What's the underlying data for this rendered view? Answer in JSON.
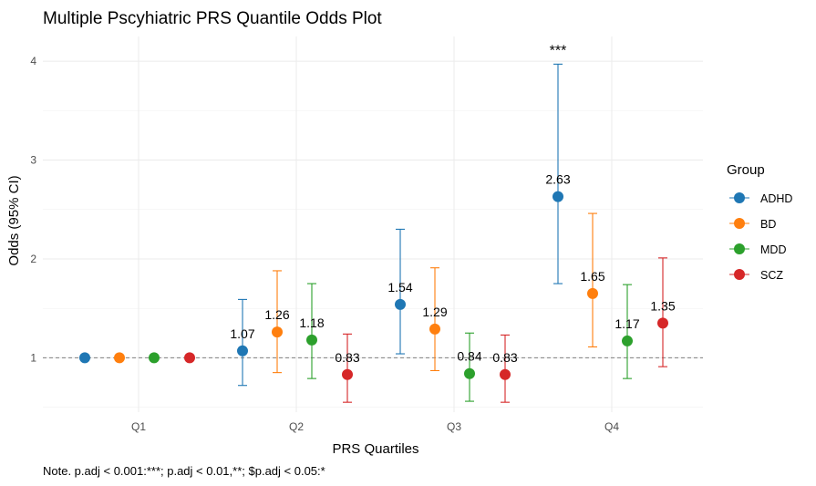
{
  "chart_data": {
    "type": "scatter",
    "title": "Multiple Pscyhiatric PRS Quantile Odds Plot",
    "xlabel": "PRS Quartiles",
    "ylabel": "Odds (95% CI)",
    "categories": [
      "Q1",
      "Q2",
      "Q3",
      "Q4"
    ],
    "yticks": [
      1,
      2,
      3,
      4
    ],
    "ylim": [
      0.45,
      4.25
    ],
    "reference_line": 1,
    "grid": true,
    "legend": {
      "title": "Group",
      "position": "right"
    },
    "note": "Note. p.adj < 0.001:***; p.adj < 0.01,**; $p.adj < 0.05:*",
    "series": [
      {
        "name": "ADHD",
        "color": "#1F77B4",
        "points": [
          {
            "x": "Q1",
            "y": 1.0,
            "lo": null,
            "hi": null,
            "label": "",
            "sig": ""
          },
          {
            "x": "Q2",
            "y": 1.07,
            "lo": 0.72,
            "hi": 1.59,
            "label": "1.07",
            "sig": ""
          },
          {
            "x": "Q3",
            "y": 1.54,
            "lo": 1.04,
            "hi": 2.3,
            "label": "1.54",
            "sig": ""
          },
          {
            "x": "Q4",
            "y": 2.63,
            "lo": 1.75,
            "hi": 3.97,
            "label": "2.63",
            "sig": "***"
          }
        ]
      },
      {
        "name": "BD",
        "color": "#FF7F0E",
        "points": [
          {
            "x": "Q1",
            "y": 1.0,
            "lo": null,
            "hi": null,
            "label": "",
            "sig": ""
          },
          {
            "x": "Q2",
            "y": 1.26,
            "lo": 0.85,
            "hi": 1.88,
            "label": "1.26",
            "sig": ""
          },
          {
            "x": "Q3",
            "y": 1.29,
            "lo": 0.87,
            "hi": 1.91,
            "label": "1.29",
            "sig": ""
          },
          {
            "x": "Q4",
            "y": 1.65,
            "lo": 1.11,
            "hi": 2.46,
            "label": "1.65",
            "sig": ""
          }
        ]
      },
      {
        "name": "MDD",
        "color": "#2CA02C",
        "points": [
          {
            "x": "Q1",
            "y": 1.0,
            "lo": null,
            "hi": null,
            "label": "",
            "sig": ""
          },
          {
            "x": "Q2",
            "y": 1.18,
            "lo": 0.79,
            "hi": 1.75,
            "label": "1.18",
            "sig": ""
          },
          {
            "x": "Q3",
            "y": 0.84,
            "lo": 0.56,
            "hi": 1.25,
            "label": "0.84",
            "sig": ""
          },
          {
            "x": "Q4",
            "y": 1.17,
            "lo": 0.79,
            "hi": 1.74,
            "label": "1.17",
            "sig": ""
          }
        ]
      },
      {
        "name": "SCZ",
        "color": "#D62728",
        "points": [
          {
            "x": "Q1",
            "y": 1.0,
            "lo": null,
            "hi": null,
            "label": "",
            "sig": ""
          },
          {
            "x": "Q2",
            "y": 0.83,
            "lo": 0.55,
            "hi": 1.24,
            "label": "0.83",
            "sig": ""
          },
          {
            "x": "Q3",
            "y": 0.83,
            "lo": 0.55,
            "hi": 1.23,
            "label": "0.83",
            "sig": ""
          },
          {
            "x": "Q4",
            "y": 1.35,
            "lo": 0.91,
            "hi": 2.01,
            "label": "1.35",
            "sig": ""
          }
        ]
      }
    ]
  }
}
